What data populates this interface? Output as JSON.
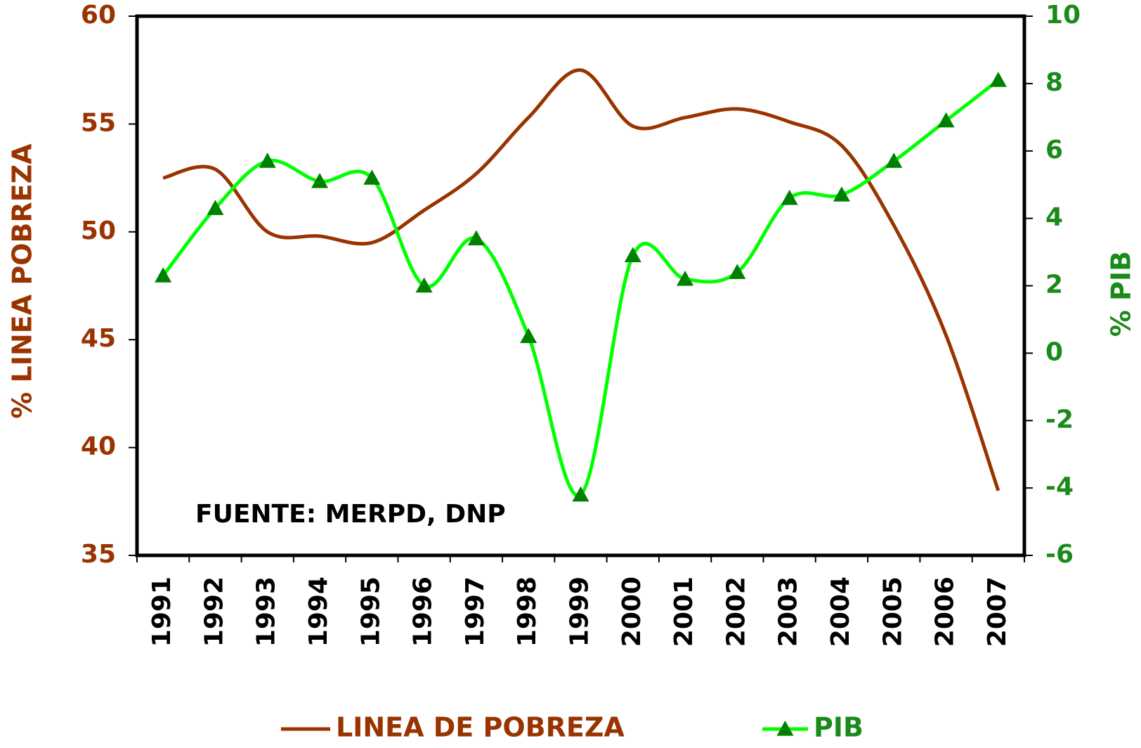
{
  "chart_data": {
    "type": "line",
    "y_label": "% LINEA POBREZA",
    "y2_label": "% PIB",
    "annotation": "FUENTE: MERPD, DNP",
    "categories": [
      "1991",
      "1992",
      "1993",
      "1994",
      "1995",
      "1996",
      "1997",
      "1998",
      "1999",
      "2000",
      "2001",
      "2002",
      "2003",
      "2004",
      "2005",
      "2006",
      "2007"
    ],
    "series": [
      {
        "name": "LINEA DE POBREZA",
        "color": "#993300",
        "axis": "y",
        "values": [
          52.5,
          52.9,
          50.0,
          49.8,
          49.5,
          51.0,
          52.7,
          55.3,
          57.5,
          54.9,
          55.3,
          55.7,
          55.1,
          54.0,
          50.3,
          45.2,
          38.0
        ]
      },
      {
        "name": "PIB",
        "color": "#00ff00",
        "marker": "triangle",
        "marker_color": "#008000",
        "axis": "y2",
        "values": [
          2.3,
          4.3,
          5.7,
          5.1,
          5.2,
          2.0,
          3.4,
          0.5,
          -4.2,
          2.9,
          2.2,
          2.4,
          4.6,
          4.7,
          5.7,
          6.9,
          8.1
        ]
      }
    ],
    "ylim": [
      35,
      60
    ],
    "yticks": [
      35,
      40,
      45,
      50,
      55,
      60
    ],
    "y_color": "#993300",
    "y2lim": [
      -6,
      10
    ],
    "y2ticks": [
      -6,
      -4,
      -2,
      0,
      2,
      4,
      6,
      8,
      10
    ],
    "y2_color": "#1a8a1a",
    "smooth": true,
    "grid": false,
    "legend": "bottom"
  }
}
